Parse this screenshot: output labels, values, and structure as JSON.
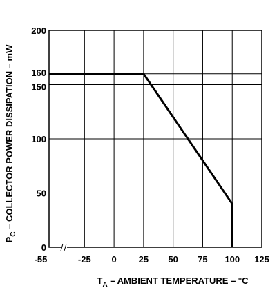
{
  "chart_data": {
    "type": "line",
    "title": "",
    "xlabel": {
      "main": "T",
      "sub": "A",
      "rest": " – AMBIENT TEMPERATURE – °C"
    },
    "ylabel": {
      "main": "P",
      "sub": "C",
      "rest": " – COLLECTOR POWER DISSIPATION – mW"
    },
    "x_ticks": [
      "-55",
      "-25",
      "0",
      "25",
      "50",
      "75",
      "100",
      "125"
    ],
    "x_tick_values": [
      -55,
      -25,
      0,
      25,
      50,
      75,
      100,
      125
    ],
    "x_axis_break": true,
    "y_ticks": [
      "0",
      "50",
      "100",
      "150",
      "160",
      "200"
    ],
    "y_tick_values": [
      0,
      50,
      100,
      150,
      160,
      200
    ],
    "xlim": [
      -55,
      125
    ],
    "ylim": [
      0,
      200
    ],
    "grid": true,
    "series": [
      {
        "x": [
          -55,
          25,
          100,
          100
        ],
        "y": [
          160,
          160,
          40,
          0
        ]
      }
    ]
  }
}
